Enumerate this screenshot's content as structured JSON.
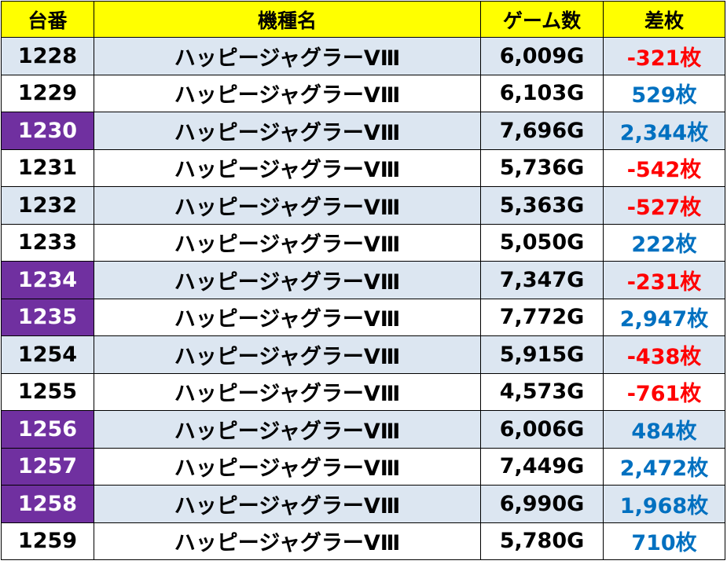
{
  "colors": {
    "header_bg": "#ffff00",
    "row_shade": "#dce6f1",
    "highlight": "#7030a0",
    "negative": "#ff0000",
    "positive": "#0070c0"
  },
  "headers": [
    "台番",
    "機種名",
    "ゲーム数",
    "差枚"
  ],
  "rows": [
    {
      "num": "1228",
      "name": "ハッピージャグラーVⅢ",
      "games": "6,009G",
      "diff": "-321枚",
      "highlighted": false,
      "negative": true
    },
    {
      "num": "1229",
      "name": "ハッピージャグラーVⅢ",
      "games": "6,103G",
      "diff": "529枚",
      "highlighted": false,
      "negative": false
    },
    {
      "num": "1230",
      "name": "ハッピージャグラーVⅢ",
      "games": "7,696G",
      "diff": "2,344枚",
      "highlighted": true,
      "negative": false
    },
    {
      "num": "1231",
      "name": "ハッピージャグラーVⅢ",
      "games": "5,736G",
      "diff": "-542枚",
      "highlighted": false,
      "negative": true
    },
    {
      "num": "1232",
      "name": "ハッピージャグラーVⅢ",
      "games": "5,363G",
      "diff": "-527枚",
      "highlighted": false,
      "negative": true
    },
    {
      "num": "1233",
      "name": "ハッピージャグラーVⅢ",
      "games": "5,050G",
      "diff": "222枚",
      "highlighted": false,
      "negative": false
    },
    {
      "num": "1234",
      "name": "ハッピージャグラーVⅢ",
      "games": "7,347G",
      "diff": "-231枚",
      "highlighted": true,
      "negative": true
    },
    {
      "num": "1235",
      "name": "ハッピージャグラーVⅢ",
      "games": "7,772G",
      "diff": "2,947枚",
      "highlighted": true,
      "negative": false
    },
    {
      "num": "1254",
      "name": "ハッピージャグラーVⅢ",
      "games": "5,915G",
      "diff": "-438枚",
      "highlighted": false,
      "negative": true
    },
    {
      "num": "1255",
      "name": "ハッピージャグラーVⅢ",
      "games": "4,573G",
      "diff": "-761枚",
      "highlighted": false,
      "negative": true
    },
    {
      "num": "1256",
      "name": "ハッピージャグラーVⅢ",
      "games": "6,006G",
      "diff": "484枚",
      "highlighted": true,
      "negative": false
    },
    {
      "num": "1257",
      "name": "ハッピージャグラーVⅢ",
      "games": "7,449G",
      "diff": "2,472枚",
      "highlighted": true,
      "negative": false
    },
    {
      "num": "1258",
      "name": "ハッピージャグラーVⅢ",
      "games": "6,990G",
      "diff": "1,968枚",
      "highlighted": true,
      "negative": false
    },
    {
      "num": "1259",
      "name": "ハッピージャグラーVⅢ",
      "games": "5,780G",
      "diff": "710枚",
      "highlighted": false,
      "negative": false
    }
  ]
}
